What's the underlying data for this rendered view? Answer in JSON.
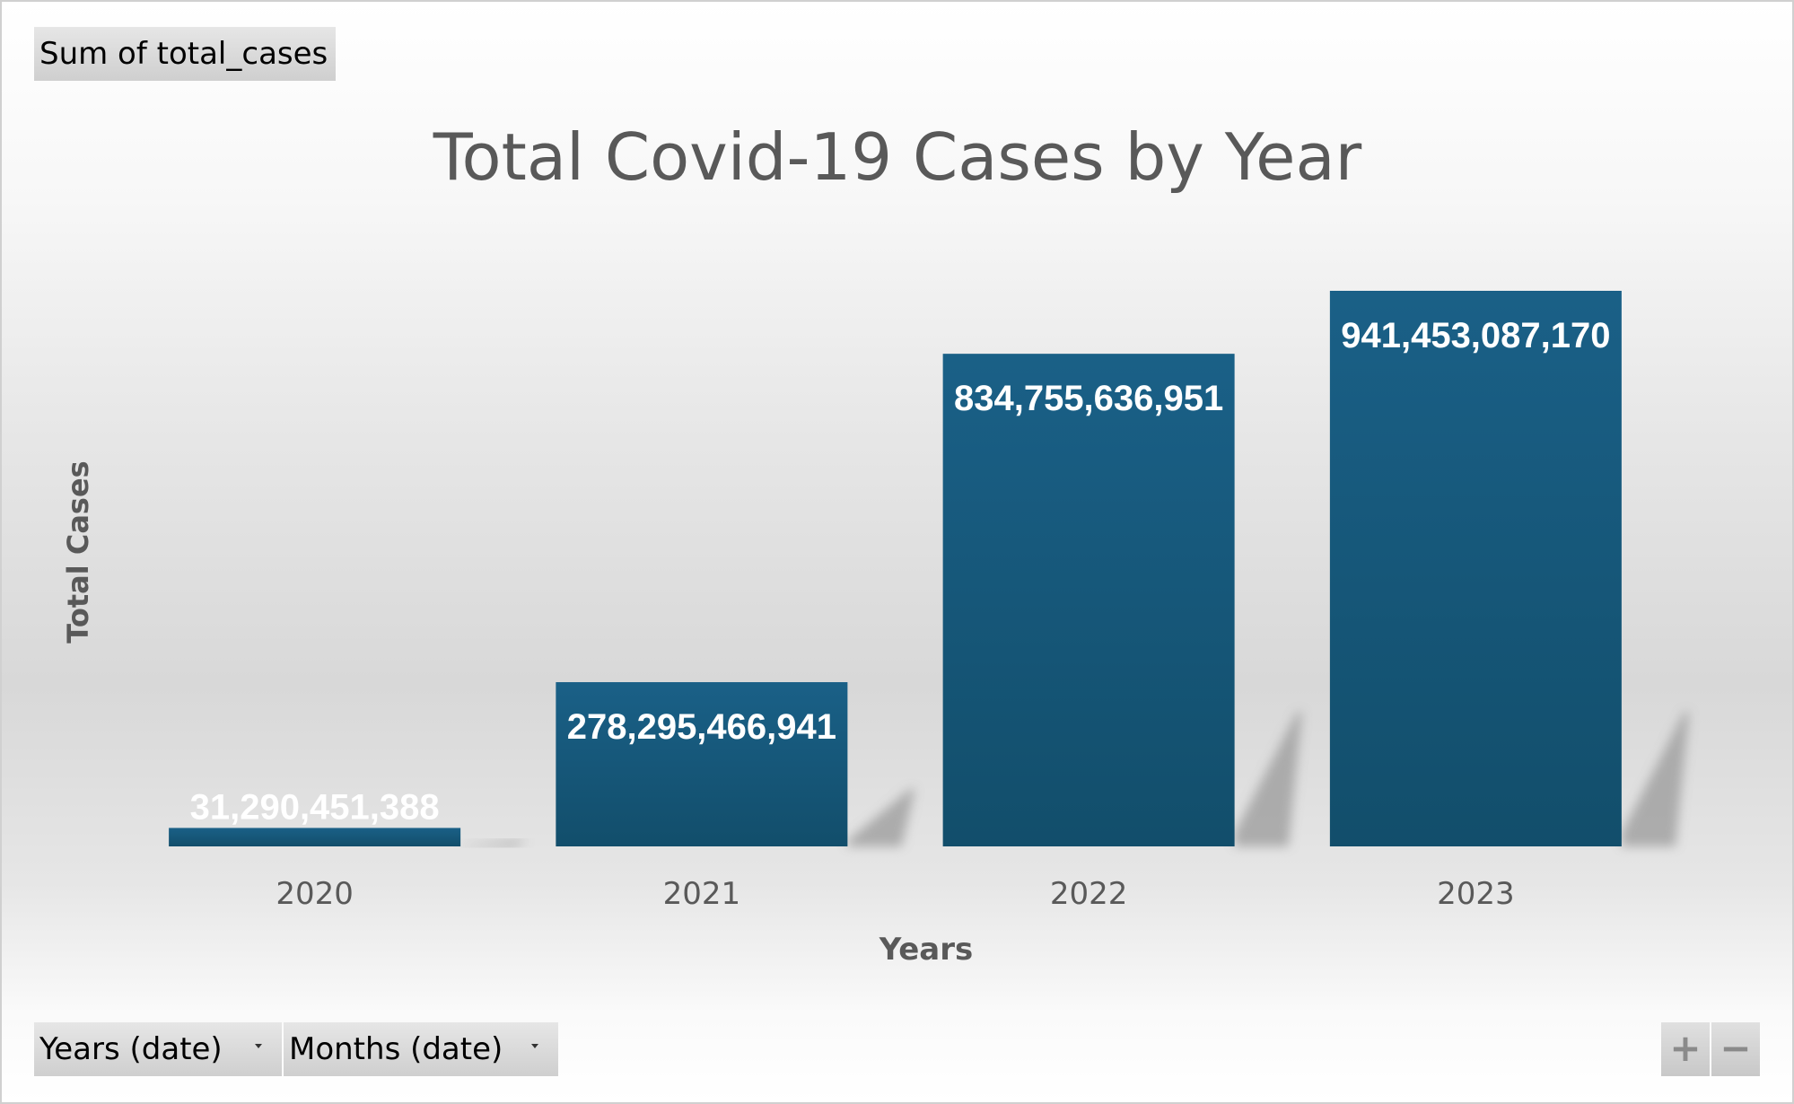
{
  "field_buttons": {
    "value_field": "Sum of total_cases",
    "filters": [
      "Years (date)",
      "Months (date)"
    ],
    "zoom_in": "+",
    "zoom_out": "−"
  },
  "colors": {
    "bar_top": "#1a6087",
    "bar_bottom": "#124e6b",
    "title": "#595959",
    "axis_text": "#595959",
    "data_label": "#ffffff"
  },
  "chart_data": {
    "type": "bar",
    "title": "Total Covid-19 Cases by Year",
    "xlabel": "Years",
    "ylabel": "Total Cases",
    "categories": [
      "2020",
      "2021",
      "2022",
      "2023"
    ],
    "values": [
      31290451388,
      278295466941,
      834755636951,
      941453087170
    ],
    "data_labels": [
      "31,290,451,388",
      "278,295,466,941",
      "834,755,636,951",
      "941,453,087,170"
    ],
    "ylim": [
      0,
      1000000000000
    ],
    "grid": false,
    "legend": "none",
    "y_axis_visible": false
  }
}
